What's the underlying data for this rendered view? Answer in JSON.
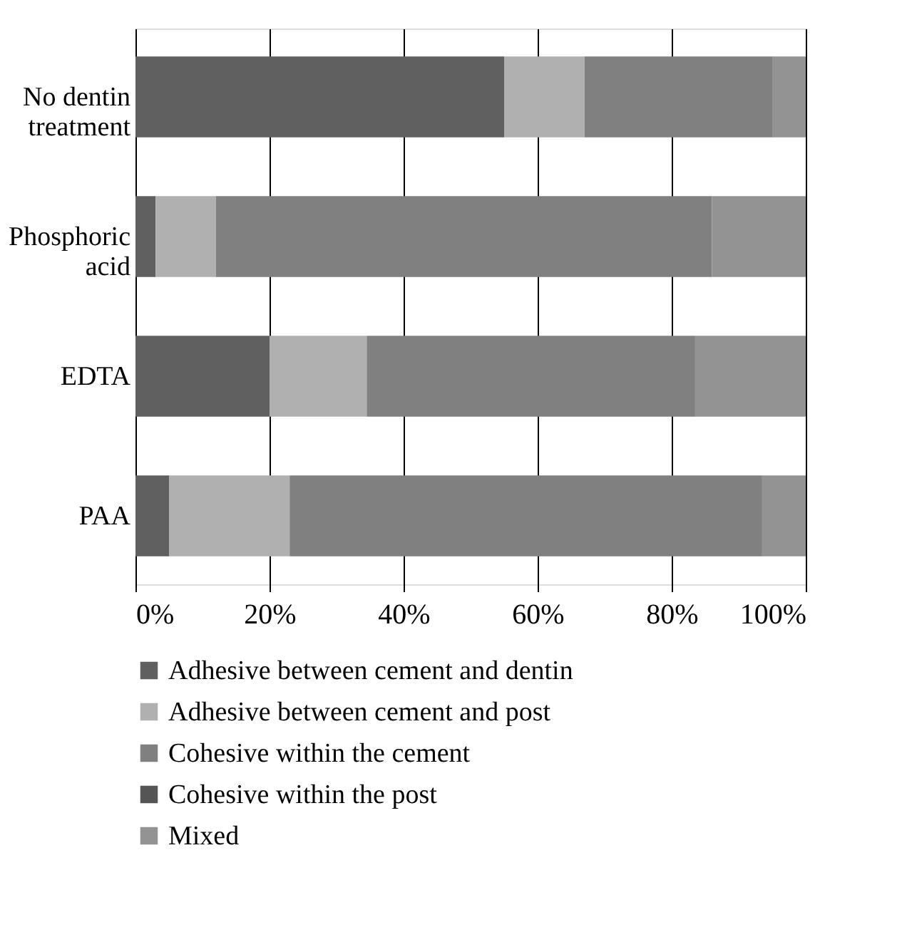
{
  "chart_data": {
    "type": "bar",
    "orientation": "horizontal",
    "stacked": true,
    "categories": [
      "No dentin treatment",
      "Phosphoric acid",
      "EDTA",
      "PAA"
    ],
    "series": [
      {
        "name": "Adhesive between cement and dentin",
        "color": "#606060",
        "values": [
          55,
          3,
          20,
          5
        ]
      },
      {
        "name": "Adhesive between cement and post",
        "color": "#b0b0b0",
        "values": [
          12,
          9,
          14.5,
          18
        ]
      },
      {
        "name": "Cohesive within the cement",
        "color": "#808080",
        "values": [
          28,
          74,
          49,
          70.5
        ]
      },
      {
        "name": "Cohesive within the post",
        "color": "#555555",
        "values": [
          0,
          0,
          0,
          0
        ]
      },
      {
        "name": "Mixed",
        "color": "#939393",
        "values": [
          5,
          14,
          16.5,
          6.5
        ]
      }
    ],
    "xlim": [
      0,
      100
    ],
    "xticks": [
      {
        "value": 0,
        "label": "0%"
      },
      {
        "value": 20,
        "label": "20%"
      },
      {
        "value": 40,
        "label": "40%"
      },
      {
        "value": 60,
        "label": "60%"
      },
      {
        "value": 80,
        "label": "80%"
      },
      {
        "value": 100,
        "label": "100%"
      }
    ],
    "grid": "x",
    "legend": "bottom"
  }
}
